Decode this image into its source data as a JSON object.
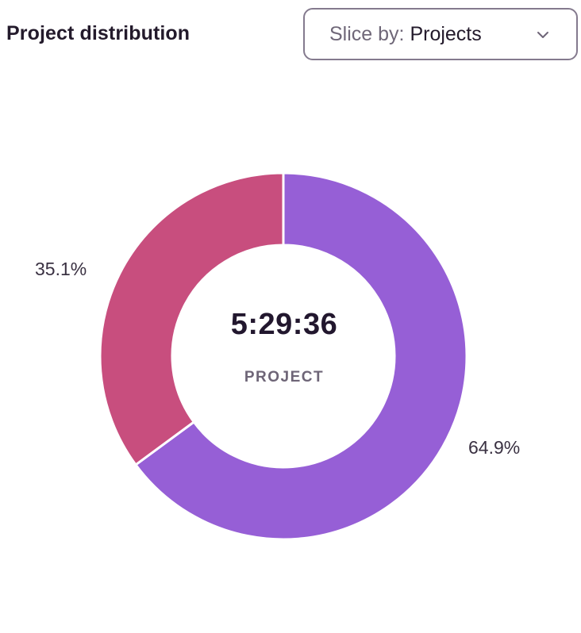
{
  "header": {
    "title": "Project distribution"
  },
  "slice_selector": {
    "prefix": "Slice by:",
    "value": "Projects",
    "icon": "chevron-down-icon"
  },
  "chart_data": {
    "type": "pie",
    "variant": "donut",
    "center_value": "5:29:36",
    "center_label": "PROJECT",
    "slices": [
      {
        "value": 64.9,
        "label": "64.9%",
        "color": "#965fd6"
      },
      {
        "value": 35.1,
        "label": "35.1%",
        "color": "#c84e7e"
      }
    ]
  }
}
